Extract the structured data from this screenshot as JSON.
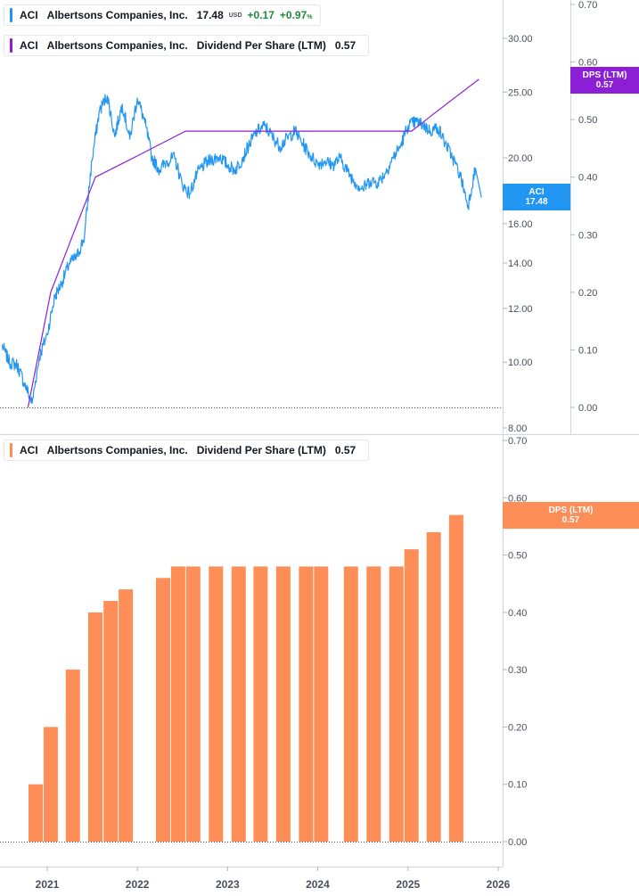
{
  "colors": {
    "price": "#2196f3",
    "dps_line": "#8c1fd6",
    "dps_bar": "#fd8e58",
    "positive": "#1e8a3c"
  },
  "legends": {
    "price": {
      "symbol": "ACI",
      "name": "Albertsons Companies, Inc.",
      "value": "17.48",
      "currency": "USD",
      "change": "+0.17",
      "change_pct": "+0.97",
      "pct_sign": "%"
    },
    "dps_line": {
      "symbol": "ACI",
      "name": "Albertsons Companies, Inc.",
      "metric": "Dividend Per Share (LTM)",
      "value": "0.57"
    },
    "dps_bar": {
      "symbol": "ACI",
      "name": "Albertsons Companies, Inc.",
      "metric": "Dividend Per Share (LTM)",
      "value": "0.57"
    }
  },
  "tags": {
    "price": {
      "label": "ACI",
      "value": "17.48"
    },
    "dps_top": {
      "label": "DPS (LTM)",
      "value": "0.57"
    },
    "dps_bottom": {
      "label": "DPS (LTM)",
      "value": "0.57"
    }
  },
  "chart_data": [
    {
      "type": "line",
      "title": "",
      "y_scale": "log",
      "y_ticks": [
        8,
        10,
        12,
        14,
        16,
        20,
        25,
        30
      ],
      "y_tick_labels": [
        "8.00",
        "10.00",
        "12.00",
        "14.00",
        "16.00",
        "20.00",
        "25.00",
        "30.00"
      ],
      "y_right_ticks": [
        0.0,
        0.1,
        0.2,
        0.3,
        0.4,
        0.5,
        0.6,
        0.7
      ],
      "y_right_tick_labels": [
        "0.00",
        "0.10",
        "0.20",
        "0.30",
        "0.40",
        "0.50",
        "0.60",
        "0.70"
      ],
      "series": [
        {
          "name": "ACI",
          "axis": "left",
          "x": [
            "2020-07-01",
            "2020-08-01",
            "2020-09-01",
            "2020-10-01",
            "2020-11-01",
            "2020-12-01",
            "2021-01-01",
            "2021-02-01",
            "2021-03-01",
            "2021-04-01",
            "2021-05-01",
            "2021-06-01",
            "2021-07-01",
            "2021-08-01",
            "2021-09-01",
            "2021-10-01",
            "2021-11-01",
            "2021-12-01",
            "2022-01-01",
            "2022-02-01",
            "2022-03-01",
            "2022-04-01",
            "2022-05-01",
            "2022-06-01",
            "2022-07-01",
            "2022-08-01",
            "2022-09-01",
            "2022-10-01",
            "2022-11-01",
            "2022-12-01",
            "2023-01-01",
            "2023-02-01",
            "2023-03-01",
            "2023-04-01",
            "2023-05-01",
            "2023-06-01",
            "2023-07-01",
            "2023-08-01",
            "2023-09-01",
            "2023-10-01",
            "2023-11-01",
            "2023-12-01",
            "2024-01-01",
            "2024-02-01",
            "2024-03-01",
            "2024-04-01",
            "2024-05-01",
            "2024-06-01",
            "2024-07-01",
            "2024-08-01",
            "2024-09-01",
            "2024-10-01",
            "2024-11-01",
            "2024-12-01",
            "2025-01-01",
            "2025-02-01",
            "2025-03-01",
            "2025-04-01",
            "2025-05-01",
            "2025-06-01",
            "2025-07-01",
            "2025-08-01",
            "2025-09-01",
            "2025-10-01",
            "2025-10-25"
          ],
          "values": [
            10.6,
            10.0,
            9.9,
            9.3,
            8.7,
            10.2,
            11.0,
            12.5,
            13.1,
            14.0,
            14.3,
            15.3,
            19.8,
            23.5,
            24.7,
            21.5,
            24.0,
            21.3,
            24.5,
            22.5,
            20.0,
            19.2,
            19.8,
            20.0,
            18.3,
            17.7,
            19.0,
            19.6,
            19.9,
            20.1,
            19.5,
            19.2,
            19.9,
            21.0,
            21.9,
            22.3,
            21.5,
            20.8,
            21.4,
            21.9,
            21.0,
            20.2,
            19.6,
            19.8,
            19.5,
            20.0,
            19.1,
            18.4,
            18.0,
            18.5,
            18.4,
            19.0,
            20.0,
            20.8,
            22.3,
            22.6,
            22.4,
            21.9,
            22.2,
            21.0,
            20.0,
            18.8,
            17.0,
            19.3,
            17.48
          ]
        },
        {
          "name": "DPS (LTM)",
          "axis": "right",
          "x": [
            "2020-10-15",
            "2021-01-15",
            "2021-04-15",
            "2021-07-15",
            "2021-10-15",
            "2022-01-15",
            "2022-04-15",
            "2022-07-15",
            "2022-10-15",
            "2025-01-15",
            "2025-04-15",
            "2025-07-15",
            "2025-10-15"
          ],
          "values": [
            0.0,
            0.2,
            0.3,
            0.4,
            0.42,
            0.44,
            0.46,
            0.48,
            0.48,
            0.48,
            0.51,
            0.54,
            0.57
          ]
        }
      ]
    },
    {
      "type": "bar",
      "title": "",
      "categories": [
        "2020-11",
        "2021-01",
        "2021-04",
        "2021-07",
        "2021-09",
        "2021-11",
        "2022-04",
        "2022-06",
        "2022-08",
        "2022-11",
        "2023-02",
        "2023-05",
        "2023-08",
        "2023-11",
        "2024-01",
        "2024-05",
        "2024-08",
        "2024-11",
        "2025-01",
        "2025-04",
        "2025-07"
      ],
      "series": [
        {
          "name": "DPS (LTM)",
          "values": [
            0.1,
            0.2,
            0.3,
            0.4,
            0.42,
            0.44,
            0.46,
            0.48,
            0.48,
            0.48,
            0.48,
            0.48,
            0.48,
            0.48,
            0.48,
            0.48,
            0.48,
            0.48,
            0.51,
            0.54,
            0.57
          ]
        }
      ],
      "y_ticks": [
        0.0,
        0.1,
        0.2,
        0.3,
        0.4,
        0.5,
        0.6,
        0.7
      ],
      "y_tick_labels": [
        "0.00",
        "0.10",
        "0.20",
        "0.30",
        "0.40",
        "0.50",
        "0.60",
        "0.70"
      ],
      "x_tick_labels": [
        "2021",
        "2022",
        "2023",
        "2024",
        "2025",
        "2026"
      ]
    }
  ]
}
